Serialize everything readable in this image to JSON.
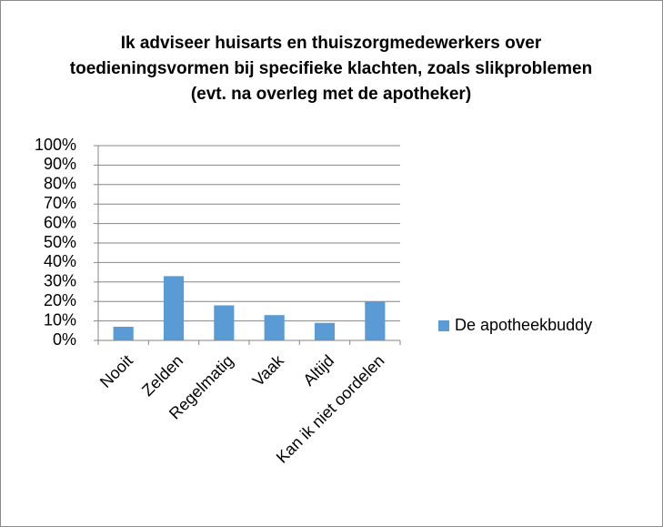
{
  "chart_data": {
    "type": "bar",
    "title": "Ik adviseer huisarts en thuiszorgmedewerkers over toedieningsvormen bij specifieke klachten, zoals slikproblemen (evt. na overleg met de apotheker)",
    "categories": [
      "Nooit",
      "Zelden",
      "Regelmatig",
      "Vaak",
      "Altijd",
      "Kan ik niet oordelen"
    ],
    "series": [
      {
        "name": "De apotheekbuddy",
        "color": "#5b9bd5",
        "values": [
          7,
          33,
          18,
          13,
          9,
          20
        ]
      }
    ],
    "ylim": [
      0,
      100
    ],
    "yticks": [
      {
        "value": 0,
        "label": "0%"
      },
      {
        "value": 10,
        "label": "10%"
      },
      {
        "value": 20,
        "label": "20%"
      },
      {
        "value": 30,
        "label": "30%"
      },
      {
        "value": 40,
        "label": "40%"
      },
      {
        "value": 50,
        "label": "50%"
      },
      {
        "value": 60,
        "label": "60%"
      },
      {
        "value": 70,
        "label": "70%"
      },
      {
        "value": 80,
        "label": "80%"
      },
      {
        "value": 90,
        "label": "90%"
      },
      {
        "value": 100,
        "label": "100%"
      }
    ],
    "grid": true,
    "legend": "right"
  }
}
